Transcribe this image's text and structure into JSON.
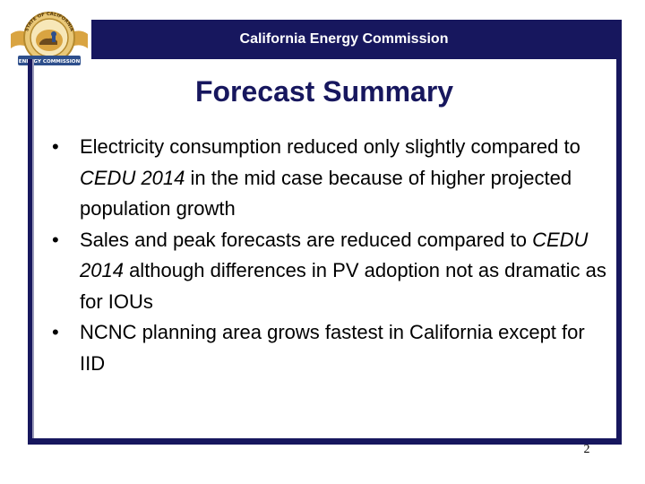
{
  "header": {
    "title": "California Energy Commission",
    "logo": {
      "icon": "state-of-california-energy-commission-seal-icon",
      "ring_text": "STATE OF CALIFORNIA",
      "banner_text": "ENERGY COMMISSION"
    }
  },
  "slide": {
    "title": "Forecast Summary",
    "bullets": [
      {
        "parts": [
          {
            "text": "Electricity consumption reduced only slightly compared to ",
            "italic": false
          },
          {
            "text": "CEDU 2014",
            "italic": true
          },
          {
            "text": " in the mid case because of higher projected population growth",
            "italic": false
          }
        ]
      },
      {
        "parts": [
          {
            "text": "Sales and peak forecasts are reduced compared to ",
            "italic": false
          },
          {
            "text": "CEDU 2014",
            "italic": true
          },
          {
            "text": " although differences in PV adoption not as dramatic as for IOUs",
            "italic": false
          }
        ]
      },
      {
        "parts": [
          {
            "text": "NCNC planning area grows fastest in California except for IID",
            "italic": false
          }
        ]
      }
    ],
    "bullet_char": "•",
    "page_number": "2"
  },
  "colors": {
    "navy": "#17175e",
    "seal_gold": "#d9a441",
    "seal_blue": "#2e4f8c"
  }
}
